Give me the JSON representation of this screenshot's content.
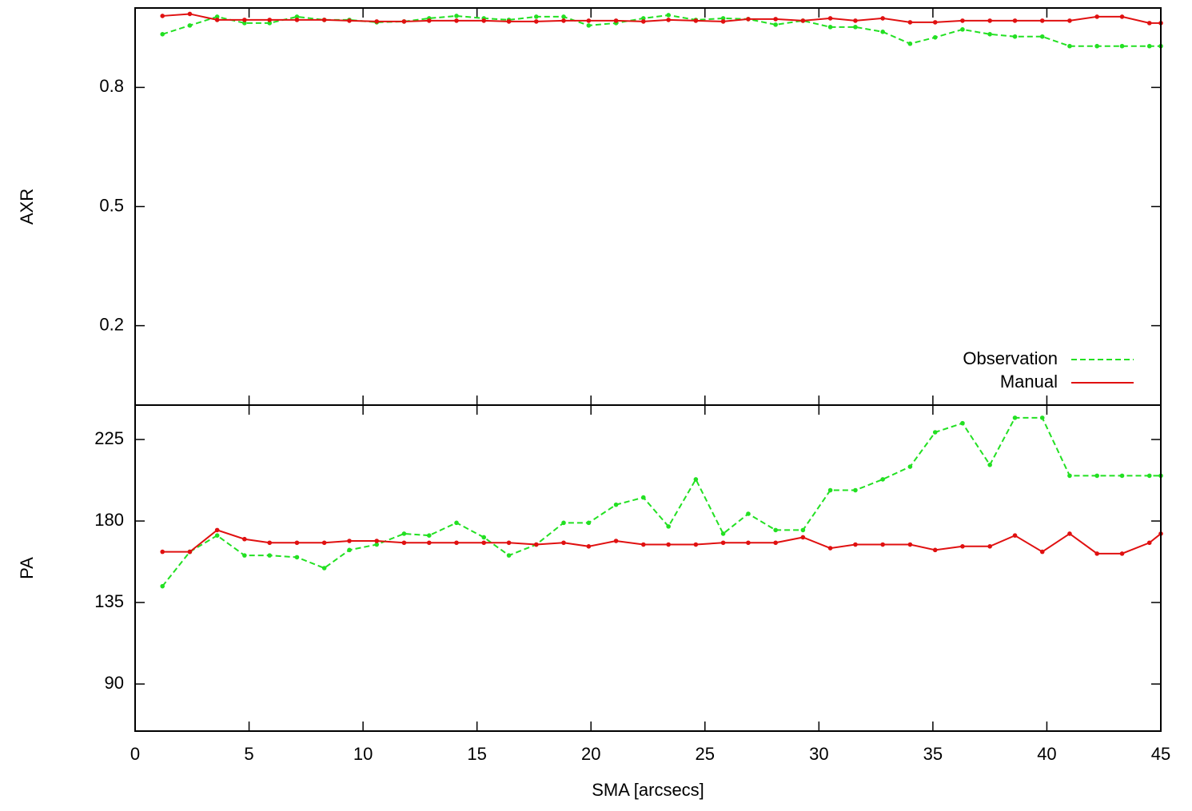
{
  "chart_data": [
    {
      "type": "line",
      "ylabel": "AXR",
      "xlim": [
        0,
        45
      ],
      "ylim": [
        0,
        1
      ],
      "yticks": [
        0.2,
        0.5,
        0.8
      ],
      "legend": "lower right",
      "x": [
        1.2,
        2.4,
        3.6,
        4.8,
        5.9,
        7.1,
        8.3,
        9.4,
        10.6,
        11.8,
        12.9,
        14.1,
        15.3,
        16.4,
        17.6,
        18.8,
        19.9,
        21.1,
        22.3,
        23.4,
        24.6,
        25.8,
        26.9,
        28.1,
        29.3,
        30.5,
        31.6,
        32.8,
        34.0,
        35.1,
        36.3,
        37.5,
        38.6,
        39.8,
        41.0,
        42.2,
        43.3,
        44.5,
        45
      ],
      "series": [
        {
          "name": "Observation",
          "color": "#22e022",
          "dashed": true,
          "values": [
            0.934,
            0.956,
            0.978,
            0.962,
            0.962,
            0.978,
            0.97,
            0.97,
            0.964,
            0.966,
            0.974,
            0.98,
            0.974,
            0.97,
            0.978,
            0.978,
            0.956,
            0.962,
            0.974,
            0.982,
            0.97,
            0.974,
            0.972,
            0.958,
            0.968,
            0.952,
            0.952,
            0.94,
            0.91,
            0.926,
            0.946,
            0.934,
            0.928,
            0.928,
            0.904,
            0.904,
            0.904,
            0.904,
            0.904
          ]
        },
        {
          "name": "Manual",
          "color": "#e01010",
          "dashed": false,
          "values": [
            0.98,
            0.985,
            0.97,
            0.97,
            0.97,
            0.97,
            0.97,
            0.968,
            0.966,
            0.966,
            0.968,
            0.968,
            0.968,
            0.966,
            0.966,
            0.968,
            0.968,
            0.968,
            0.966,
            0.97,
            0.968,
            0.966,
            0.972,
            0.972,
            0.968,
            0.974,
            0.968,
            0.974,
            0.964,
            0.964,
            0.968,
            0.968,
            0.968,
            0.968,
            0.968,
            0.978,
            0.978,
            0.962,
            0.962
          ]
        }
      ]
    },
    {
      "type": "line",
      "ylabel": "PA",
      "xlabel": "SMA [arcsecs]",
      "xlim": [
        0,
        45
      ],
      "xticks": [
        0,
        5,
        10,
        15,
        20,
        25,
        30,
        35,
        40,
        45
      ],
      "ylim": [
        64,
        244
      ],
      "yticks": [
        90,
        135,
        180,
        225
      ],
      "x": [
        1.2,
        2.4,
        3.6,
        4.8,
        5.9,
        7.1,
        8.3,
        9.4,
        10.6,
        11.8,
        12.9,
        14.1,
        15.3,
        16.4,
        17.6,
        18.8,
        19.9,
        21.1,
        22.3,
        23.4,
        24.6,
        25.8,
        26.9,
        28.1,
        29.3,
        30.5,
        31.6,
        32.8,
        34.0,
        35.1,
        36.3,
        37.5,
        38.6,
        39.8,
        41.0,
        42.2,
        43.3,
        44.5,
        45
      ],
      "series": [
        {
          "name": "Observation",
          "color": "#22e022",
          "dashed": true,
          "values": [
            144,
            163,
            172,
            161,
            161,
            160,
            154,
            164,
            167,
            173,
            172,
            179,
            171,
            161,
            167,
            179,
            179,
            189,
            193,
            177,
            203,
            173,
            184,
            175,
            175,
            197,
            197,
            203,
            210,
            229,
            234,
            211,
            237,
            237,
            205,
            205,
            205,
            205,
            205
          ]
        },
        {
          "name": "Manual",
          "color": "#e01010",
          "dashed": false,
          "values": [
            163,
            163,
            175,
            170,
            168,
            168,
            168,
            169,
            169,
            168,
            168,
            168,
            168,
            168,
            167,
            168,
            166,
            169,
            167,
            167,
            167,
            168,
            168,
            168,
            171,
            165,
            167,
            167,
            167,
            164,
            166,
            166,
            172,
            163,
            173,
            162,
            162,
            168,
            173
          ]
        }
      ]
    }
  ]
}
